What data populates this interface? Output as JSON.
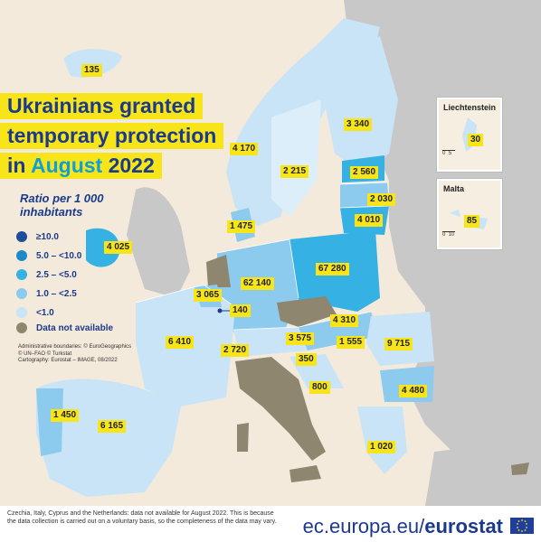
{
  "title": {
    "line1": "Ukrainians granted",
    "line2": "temporary protection",
    "line3_prefix": "in ",
    "line3_month": "August",
    "line3_year": " 2022"
  },
  "legend": {
    "title": "Ratio per 1 000 inhabitants",
    "items": [
      {
        "label": "≥10.0",
        "color": "#1c4e9a"
      },
      {
        "label": "5.0 – <10.0",
        "color": "#1f88c8"
      },
      {
        "label": "2.5 – <5.0",
        "color": "#35b2e3"
      },
      {
        "label": "1.0 – <2.5",
        "color": "#8ccbee"
      },
      {
        "label": "<1.0",
        "color": "#c8e4f6"
      },
      {
        "label": "Data not available",
        "color": "#8f8670"
      }
    ]
  },
  "credits": {
    "line1": "Administrative boundaries: © EuroGeographics",
    "line2": "© UN–FAO © Turkstat",
    "line3": "Cartography: Eurostat – IMAGE, 08/2022"
  },
  "values": [
    {
      "country": "Iceland",
      "value": "135"
    },
    {
      "country": "Finland",
      "value": "3 340"
    },
    {
      "country": "Norway",
      "value": "4 170"
    },
    {
      "country": "Sweden",
      "value": "2 215"
    },
    {
      "country": "Estonia",
      "value": "2 560"
    },
    {
      "country": "Latvia",
      "value": "2 030"
    },
    {
      "country": "Lithuania",
      "value": "4 010"
    },
    {
      "country": "Denmark",
      "value": "1 475"
    },
    {
      "country": "Ireland",
      "value": "4 025"
    },
    {
      "country": "Germany",
      "value": "62 140"
    },
    {
      "country": "Poland",
      "value": "67 280"
    },
    {
      "country": "Belgium",
      "value": "3 065"
    },
    {
      "country": "Luxembourg",
      "value": "140"
    },
    {
      "country": "Slovakia",
      "value": "4 310"
    },
    {
      "country": "France",
      "value": "6 410"
    },
    {
      "country": "Switzerland",
      "value": "2 720"
    },
    {
      "country": "Austria",
      "value": "3 575"
    },
    {
      "country": "Hungary",
      "value": "1 555"
    },
    {
      "country": "Romania",
      "value": "9 715"
    },
    {
      "country": "Slovenia",
      "value": "350"
    },
    {
      "country": "Croatia",
      "value": "800"
    },
    {
      "country": "Bulgaria",
      "value": "4 480"
    },
    {
      "country": "Portugal",
      "value": "1 450"
    },
    {
      "country": "Spain",
      "value": "6 165"
    },
    {
      "country": "Greece",
      "value": "1 020"
    }
  ],
  "insets": [
    {
      "name": "Liechtenstein",
      "value": "30",
      "scale": [
        "0",
        "5"
      ]
    },
    {
      "name": "Malta",
      "value": "85",
      "scale": [
        "0",
        "10"
      ]
    }
  ],
  "footnote": "Czechia, Italy, Cyprus and the Netherlands: data not available for August 2022. This is because the data collection is carried out on a voluntary basis, so the completeness of the data may vary.",
  "brand": {
    "prefix": "ec.europa.eu/",
    "bold": "eurostat"
  }
}
